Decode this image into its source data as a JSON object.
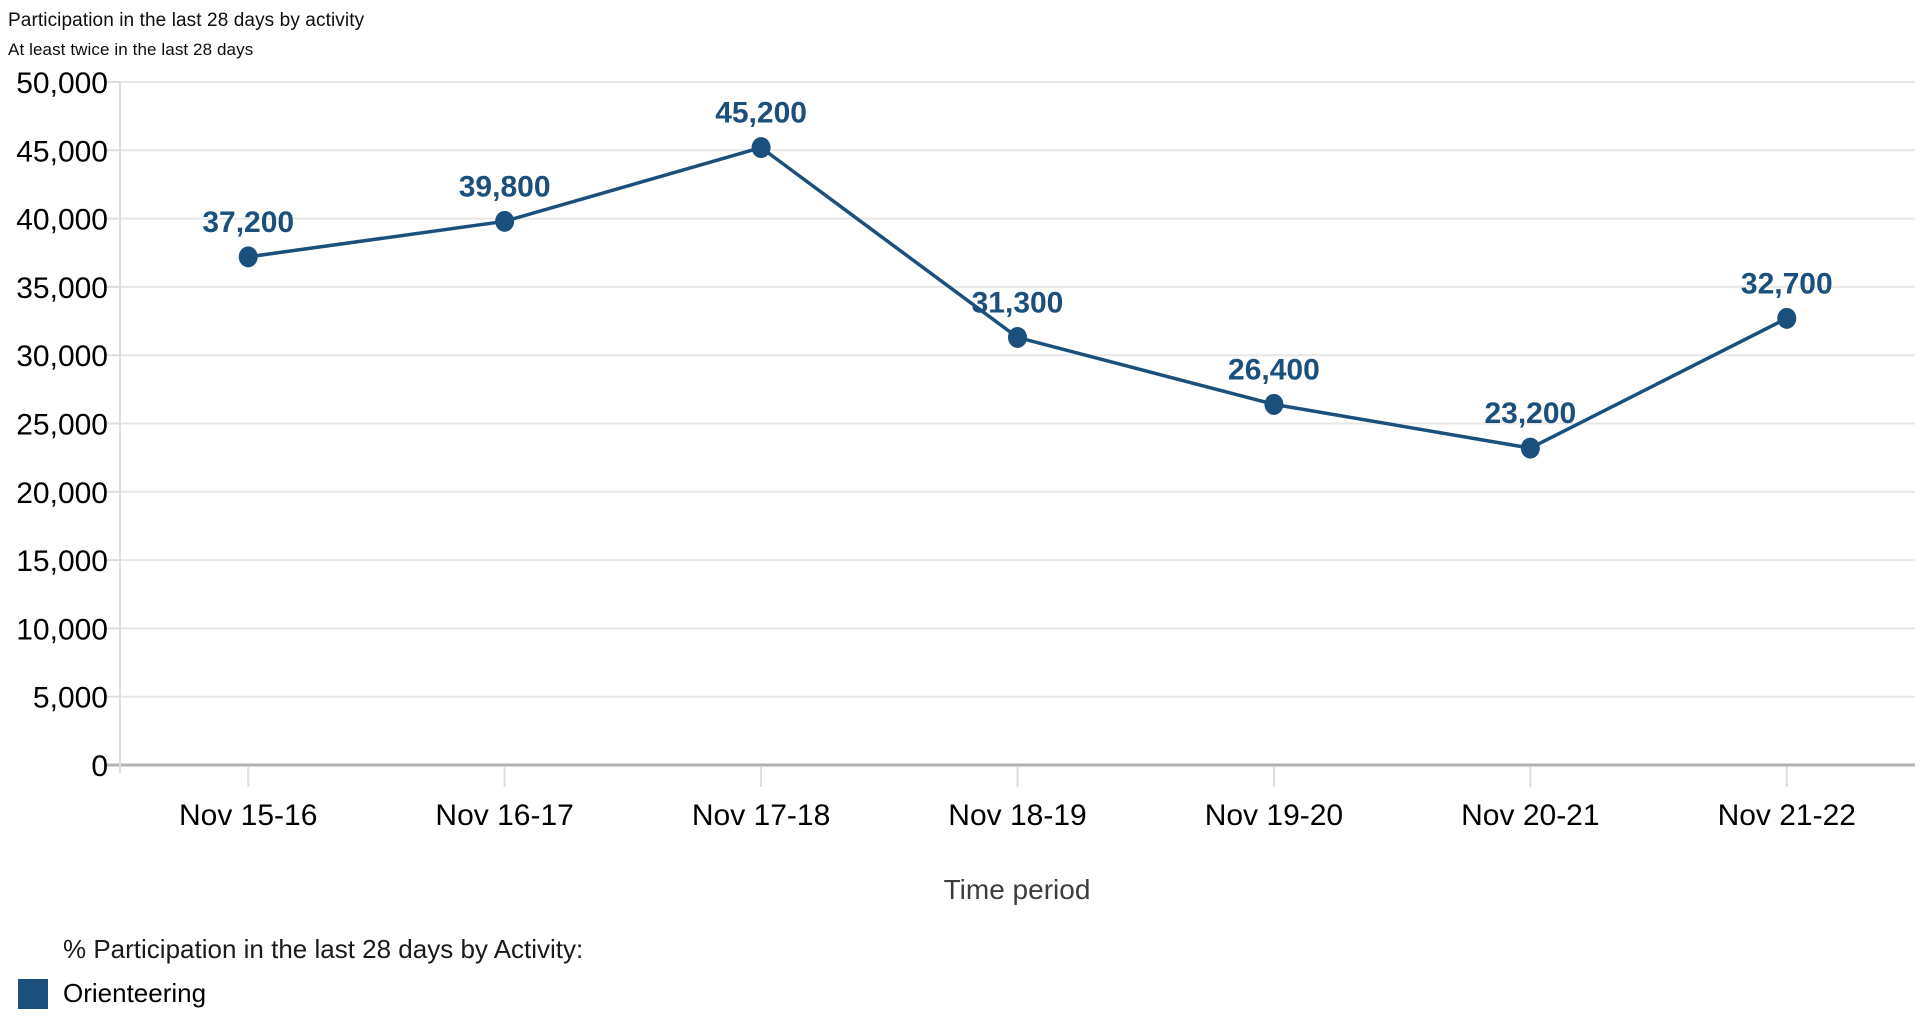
{
  "header": {
    "title": "Participation in the last 28 days by activity",
    "subtitle": "At least twice in the last 28 days"
  },
  "chart_data": {
    "type": "line",
    "title": "Participation in the last 28 days by activity",
    "subtitle": "At least twice in the last 28 days",
    "categories": [
      "Nov 15-16",
      "Nov 16-17",
      "Nov 17-18",
      "Nov 18-19",
      "Nov 19-20",
      "Nov 20-21",
      "Nov 21-22"
    ],
    "series": [
      {
        "name": "Orienteering",
        "values": [
          37200,
          39800,
          45200,
          31300,
          26400,
          23200,
          32700
        ]
      }
    ],
    "data_labels": [
      "37,200",
      "39,800",
      "45,200",
      "31,300",
      "26,400",
      "23,200",
      "32,700"
    ],
    "xlabel": "Time period",
    "ylabel": "",
    "ylim": [
      0,
      50000
    ],
    "ytick_step": 5000,
    "ytick_labels": [
      "0",
      "5,000",
      "10,000",
      "15,000",
      "20,000",
      "25,000",
      "30,000",
      "35,000",
      "40,000",
      "45,000",
      "50,000"
    ],
    "grid": "horizontal-only",
    "legend_position": "bottom-left",
    "colors": {
      "series": "#1b4f7c",
      "data_label_text": "#1b4f7c",
      "gridline": "#e7e7e7",
      "zero_axis_line": "#b2b2b2",
      "axis_tick": "#dedede",
      "tick_label_text": "#000000",
      "xlabel_text": "#3d3d3d"
    }
  },
  "legend": {
    "title": "% Participation in the last 28 days by Activity:",
    "items": [
      {
        "label": "Orienteering",
        "color": "#1b4f7c"
      }
    ]
  }
}
